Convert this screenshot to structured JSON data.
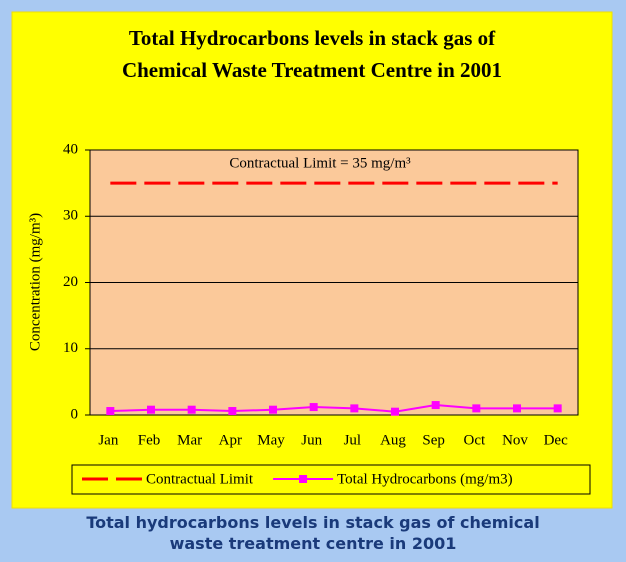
{
  "chart_data": {
    "type": "line",
    "title": [
      "Total Hydrocarbons levels in stack gas of",
      "Chemical Waste Treatment Centre in 2001"
    ],
    "y_label": "Concentration (mg/m³)",
    "annotation": "Contractual Limit = 35 mg/m³",
    "categories": [
      "Jan",
      "Feb",
      "Mar",
      "Apr",
      "May",
      "Jun",
      "Jul",
      "Aug",
      "Sep",
      "Oct",
      "Nov",
      "Dec"
    ],
    "series": [
      {
        "name": "Contractual Limit",
        "color": "#ff0000",
        "line_style": "dashed",
        "values": [
          35,
          35,
          35,
          35,
          35,
          35,
          35,
          35,
          35,
          35,
          35,
          35
        ]
      },
      {
        "name": "Total Hydrocarbons (mg/m3)",
        "color": "#ff00ff",
        "marker": "square",
        "values": [
          0.6,
          0.8,
          0.8,
          0.6,
          0.8,
          1.2,
          1.0,
          0.5,
          1.5,
          1.0,
          1.0,
          1.0
        ]
      }
    ],
    "ylim": [
      0,
      40
    ],
    "yticks": [
      0,
      10,
      20,
      30,
      40
    ],
    "grid": true,
    "legend": "bottom"
  },
  "caption": "Total hydrocarbons levels in stack gas of chemical waste treatment centre in 2001"
}
